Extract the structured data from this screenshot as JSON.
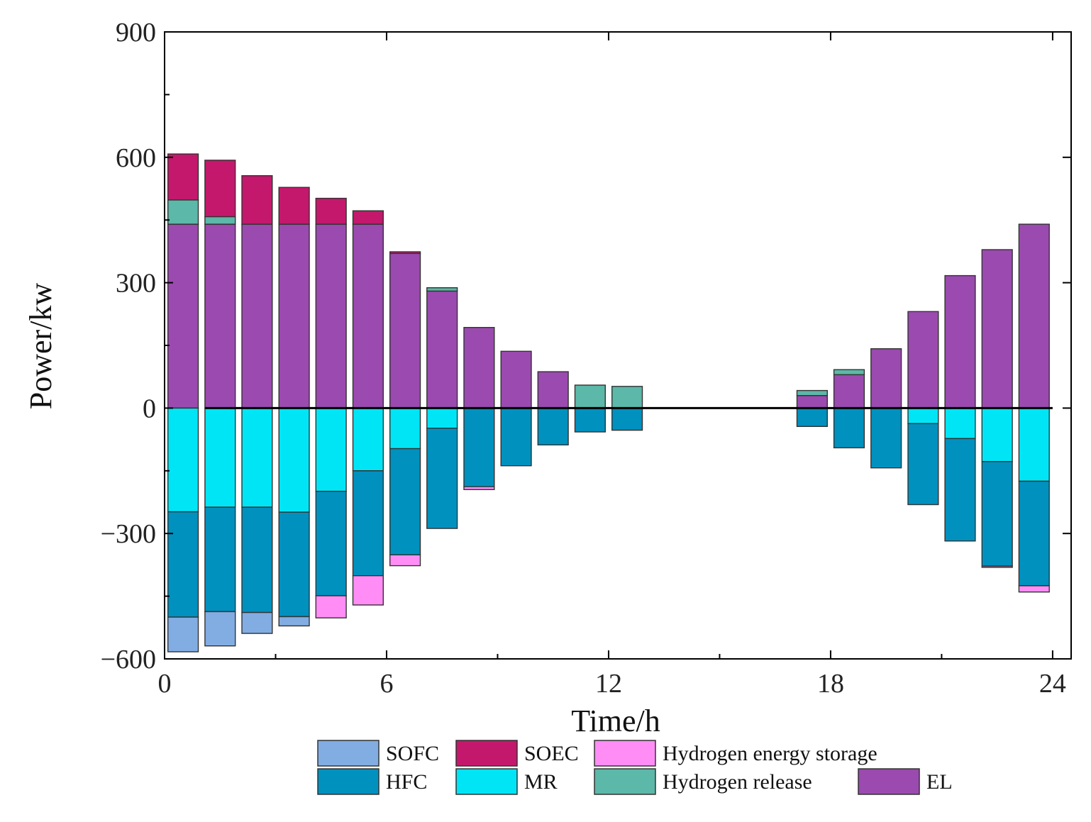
{
  "chart_data": {
    "type": "bar",
    "stacked": true,
    "xlabel": "Time/h",
    "ylabel": "Power/kw",
    "xlim": [
      0,
      24.5
    ],
    "ylim": [
      -600,
      900
    ],
    "xticks": [
      0,
      6,
      12,
      18,
      24
    ],
    "yticks": [
      -600,
      -300,
      0,
      300,
      600,
      900
    ],
    "ytick_labels": [
      "−600",
      "−300",
      "0",
      "300",
      "600",
      "900"
    ],
    "hours": [
      1,
      2,
      3,
      4,
      5,
      6,
      7,
      8,
      9,
      10,
      11,
      12,
      13,
      14,
      15,
      16,
      17,
      18,
      19,
      20,
      21,
      22,
      23,
      24
    ],
    "series": [
      {
        "name": "EL",
        "color": "#9b4aaf",
        "side": "positive",
        "values": [
          440,
          440,
          440,
          440,
          440,
          440,
          370,
          280,
          193,
          136,
          87,
          0,
          0,
          0,
          0,
          0,
          0,
          30,
          80,
          142,
          231,
          317,
          379,
          440
        ]
      },
      {
        "name": "Hydrogen release",
        "color": "#5cb8a8",
        "side": "positive",
        "values": [
          58,
          18,
          0,
          0,
          0,
          0,
          0,
          8,
          0,
          0,
          0,
          55,
          52,
          0,
          0,
          0,
          0,
          12,
          12,
          0,
          0,
          0,
          0,
          0
        ]
      },
      {
        "name": "SOEC",
        "color": "#c4186c",
        "side": "positive",
        "values": [
          110,
          135,
          116,
          88,
          62,
          32,
          4,
          0,
          0,
          0,
          0,
          0,
          0,
          0,
          0,
          0,
          0,
          0,
          0,
          0,
          0,
          0,
          0,
          0
        ]
      },
      {
        "name": "MR",
        "color": "#00e5f5",
        "side": "negative",
        "values": [
          -248,
          -237,
          -237,
          -249,
          -199,
          -150,
          -97,
          -48,
          0,
          0,
          0,
          0,
          0,
          0,
          0,
          0,
          0,
          0,
          0,
          0,
          -37,
          -73,
          -128,
          -175
        ]
      },
      {
        "name": "HFC",
        "color": "#0091bf",
        "side": "negative",
        "values": [
          -252,
          -250,
          -252,
          -250,
          -250,
          -251,
          -254,
          -240,
          -188,
          -138,
          -88,
          -57,
          -53,
          0,
          0,
          0,
          0,
          -44,
          -95,
          -143,
          -194,
          -245,
          -250,
          -250
        ]
      },
      {
        "name": "Hydrogen energy storage",
        "color": "#ff8df5",
        "side": "negative",
        "values": [
          0,
          0,
          0,
          0,
          -53,
          -70,
          -26,
          0,
          -7,
          0,
          0,
          0,
          0,
          0,
          0,
          0,
          0,
          0,
          0,
          0,
          0,
          0,
          -3,
          -15
        ]
      },
      {
        "name": "SOFC",
        "color": "#82ade2",
        "side": "negative",
        "values": [
          -83,
          -82,
          -50,
          -22,
          0,
          0,
          0,
          0,
          0,
          0,
          0,
          0,
          0,
          0,
          0,
          0,
          0,
          0,
          0,
          0,
          0,
          0,
          0,
          0
        ]
      }
    ],
    "legend": [
      {
        "label": "SOFC",
        "color": "#82ade2"
      },
      {
        "label": "SOEC",
        "color": "#c4186c"
      },
      {
        "label": "Hydrogen energy storage",
        "color": "#ff8df5"
      },
      {
        "label": "HFC",
        "color": "#0091bf"
      },
      {
        "label": "MR",
        "color": "#00e5f5"
      },
      {
        "label": "Hydrogen release",
        "color": "#5cb8a8"
      },
      {
        "label": "EL",
        "color": "#9b4aaf"
      }
    ],
    "legend_position": "bottom"
  }
}
